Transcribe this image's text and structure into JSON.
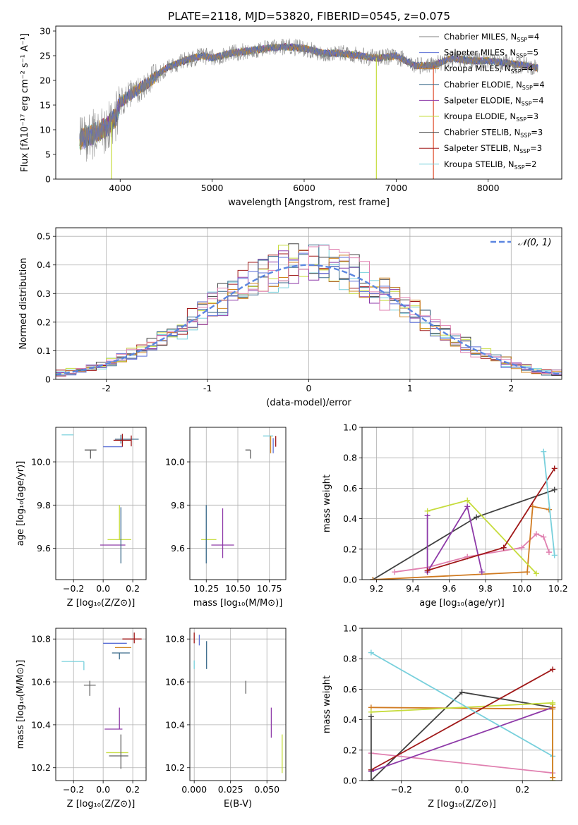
{
  "figure_title": "PLATE=2118, MJD=53820, FIBERID=0545, z=0.075",
  "series_colors": [
    "#808080",
    "#5b6fd6",
    "#d08420",
    "#3a6a8a",
    "#8e3aa8",
    "#c6dc3c",
    "#404040",
    "#a01818",
    "#78d0dc"
  ],
  "sfh_colors": [
    "#404040",
    "#e080b0",
    "#c0c0c0",
    "#d07a20",
    "#8e3aa8",
    "#c6dc3c",
    "#50a0b0",
    "#a01818",
    "#78d0dc"
  ],
  "chart_data": [
    {
      "id": "spectrum",
      "type": "line",
      "xlabel": "wavelength [Angstrom, rest frame]",
      "ylabel": "Flux [fλ10⁻¹⁷ erg cm⁻² s⁻¹ A⁻¹]",
      "xlim": [
        3300,
        8800
      ],
      "ylim": [
        0,
        31
      ],
      "xticks": [
        4000,
        5000,
        6000,
        7000,
        8000
      ],
      "yticks": [
        0,
        5,
        10,
        15,
        20,
        25,
        30
      ],
      "grid": false,
      "legend_position": "top-right",
      "spectrum_x": [
        3560,
        3700,
        3850,
        3950,
        4000,
        4100,
        4300,
        4500,
        4700,
        4900,
        5000,
        5200,
        5400,
        5600,
        5800,
        6000,
        6200,
        6400,
        6600,
        6800,
        7000,
        7200,
        7400,
        7600,
        7800,
        8000,
        8200,
        8400,
        8540
      ],
      "spectrum_y": [
        8,
        9,
        10.5,
        12.5,
        15.5,
        17,
        19.5,
        22.5,
        24,
        25,
        24.5,
        25.5,
        26,
        26.5,
        26.8,
        26.5,
        25.5,
        25.5,
        25,
        24.5,
        25,
        23,
        23,
        24.5,
        24,
        24,
        23.5,
        23,
        22.5
      ],
      "series": [
        {
          "name": "Chabrier MILES, N",
          "sub": "SSP",
          "suffix": "=4"
        },
        {
          "name": "Salpeter MILES, N",
          "sub": "SSP",
          "suffix": "=5"
        },
        {
          "name": "Kroupa MILES, N",
          "sub": "SSP",
          "suffix": "=4"
        },
        {
          "name": "Chabrier ELODIE, N",
          "sub": "SSP",
          "suffix": "=4"
        },
        {
          "name": "Salpeter ELODIE, N",
          "sub": "SSP",
          "suffix": "=4"
        },
        {
          "name": "Kroupa ELODIE, N",
          "sub": "SSP",
          "suffix": "=3"
        },
        {
          "name": "Chabrier STELIB, N",
          "sub": "SSP",
          "suffix": "=3"
        },
        {
          "name": "Salpeter STELIB, N",
          "sub": "SSP",
          "suffix": "=3"
        },
        {
          "name": "Kroupa STELIB, N",
          "sub": "SSP",
          "suffix": "=2"
        }
      ]
    },
    {
      "id": "residuals",
      "type": "histogram",
      "xlabel": "(data-model)/error",
      "ylabel": "Normed distribution",
      "xlim": [
        -2.5,
        2.5
      ],
      "ylim": [
        0,
        0.53
      ],
      "xticks": [
        -2,
        -1,
        0,
        1,
        2
      ],
      "yticks": [
        0.0,
        0.1,
        0.2,
        0.3,
        0.4,
        0.5
      ],
      "grid": true,
      "legend_position": "top-right",
      "reference_curve": {
        "label": "𝒩(0, 1)",
        "mean": 0,
        "sigma": 1,
        "amplitude": 0.4
      }
    },
    {
      "id": "age_vs_Z",
      "type": "errorbar",
      "xlabel": "Z [log₁₀(Z/Z⊙)]",
      "ylabel": "age  [log₁₀(age/yr)]",
      "xlim": [
        -0.32,
        0.29
      ],
      "ylim": [
        9.455,
        10.16
      ],
      "xticks": [
        -0.2,
        0.0,
        0.2
      ],
      "xticklabels": [
        "−0.2",
        "0.0",
        "0.2"
      ],
      "yticks": [
        9.6,
        9.8,
        10.0
      ],
      "yticklabels": [
        "9.6",
        "9.8",
        "10.0"
      ],
      "grid": true,
      "points": [
        {
          "x": -0.2,
          "y": 10.125,
          "xl": 0.08,
          "xh": 0.0,
          "yl": 0.0,
          "yh": 0.0,
          "c": 8
        },
        {
          "x": -0.085,
          "y": 10.055,
          "xl": 0.04,
          "xh": 0.04,
          "yl": 0.04,
          "yh": 0.0,
          "c": 6
        },
        {
          "x": 0.08,
          "y": 10.07,
          "xl": 0.08,
          "xh": 0.05,
          "yl": 0.0,
          "yh": 0.0,
          "c": 1
        },
        {
          "x": 0.12,
          "y": 10.105,
          "xl": 0.04,
          "xh": 0.12,
          "yl": 0.02,
          "yh": 0.02,
          "c": 3
        },
        {
          "x": 0.13,
          "y": 10.1,
          "xl": 0.06,
          "xh": 0.06,
          "yl": 0.03,
          "yh": 0.03,
          "c": 7
        },
        {
          "x": 0.19,
          "y": 10.102,
          "xl": 0.0,
          "xh": 0.0,
          "yl": 0.03,
          "yh": 0.02,
          "c": 7
        },
        {
          "x": 0.1,
          "y": 9.615,
          "xl": 0.12,
          "xh": 0.05,
          "yl": 0.0,
          "yh": 0.0,
          "c": 4
        },
        {
          "x": 0.11,
          "y": 9.64,
          "xl": 0.08,
          "xh": 0.08,
          "yl": 0.0,
          "yh": 0.16,
          "c": 5
        },
        {
          "x": 0.12,
          "y": 9.62,
          "xl": 0.0,
          "xh": 0.0,
          "yl": 0.09,
          "yh": 0.17,
          "c": 3
        }
      ]
    },
    {
      "id": "age_vs_mass",
      "type": "errorbar",
      "xlabel": "mass [log₁₀(M/M⊙)]",
      "ylabel": "",
      "xlim": [
        10.12,
        10.88
      ],
      "ylim": [
        9.455,
        10.16
      ],
      "xticks": [
        10.25,
        10.5,
        10.75
      ],
      "xticklabels": [
        "10.25",
        "10.50",
        "10.75"
      ],
      "yticks": [
        9.6,
        9.8,
        10.0
      ],
      "yticklabels": [
        "9.6",
        "9.8",
        "10.0"
      ],
      "grid": true,
      "points": [
        {
          "x": 10.6,
          "y": 10.055,
          "xl": 0.04,
          "xh": 0.0,
          "yl": 0.04,
          "yh": 0.0,
          "c": 6
        },
        {
          "x": 10.73,
          "y": 10.12,
          "xl": 0.03,
          "xh": 0.05,
          "yl": 0.0,
          "yh": 0.0,
          "c": 8
        },
        {
          "x": 10.76,
          "y": 10.09,
          "xl": 0.0,
          "xh": 0.0,
          "yl": 0.05,
          "yh": 0.03,
          "c": 2
        },
        {
          "x": 10.78,
          "y": 10.08,
          "xl": 0.0,
          "xh": 0.0,
          "yl": 0.04,
          "yh": 0.03,
          "c": 1
        },
        {
          "x": 10.8,
          "y": 10.1,
          "xl": 0.0,
          "xh": 0.0,
          "yl": 0.03,
          "yh": 0.02,
          "c": 7
        },
        {
          "x": 10.38,
          "y": 9.615,
          "xl": 0.09,
          "xh": 0.09,
          "yl": 0.06,
          "yh": 0.17,
          "c": 4
        },
        {
          "x": 10.27,
          "y": 9.64,
          "xl": 0.06,
          "xh": 0.06,
          "yl": 0.0,
          "yh": 0.0,
          "c": 5
        },
        {
          "x": 10.25,
          "y": 9.62,
          "xl": 0.0,
          "xh": 0.0,
          "yl": 0.09,
          "yh": 0.18,
          "c": 3
        }
      ]
    },
    {
      "id": "mass_weight_vs_age",
      "type": "line",
      "xlabel": "age  [log₁₀(age/yr)]",
      "ylabel": "mass weight",
      "xlim": [
        9.12,
        10.22
      ],
      "ylim": [
        0,
        1.0
      ],
      "xticks": [
        9.2,
        9.4,
        9.6,
        9.8,
        10.0,
        10.2
      ],
      "xticklabels": [
        "9.2",
        "9.4",
        "9.6",
        "9.8",
        "10.0",
        "10.2"
      ],
      "yticks": [
        0.0,
        0.2,
        0.4,
        0.6,
        0.8,
        1.0
      ],
      "yticklabels": [
        "0.0",
        "0.2",
        "0.4",
        "0.6",
        "0.8",
        "1.0"
      ],
      "grid": true,
      "series": [
        {
          "x": [
            9.18,
            9.75,
            10.18
          ],
          "y": [
            0.0,
            0.41,
            0.59
          ],
          "c": 0
        },
        {
          "x": [
            9.3,
            9.48,
            9.7,
            10.0,
            10.08,
            10.12,
            10.15
          ],
          "y": [
            0.05,
            0.08,
            0.15,
            0.21,
            0.3,
            0.28,
            0.18
          ],
          "c": 1
        },
        {
          "x": [
            9.18,
            10.03,
            10.06,
            10.15
          ],
          "y": [
            0.0,
            0.05,
            0.48,
            0.46
          ],
          "c": 3
        },
        {
          "x": [
            9.48,
            9.48,
            9.7,
            9.78
          ],
          "y": [
            0.42,
            0.05,
            0.48,
            0.05
          ],
          "c": 4
        },
        {
          "x": [
            9.48,
            9.7,
            10.08
          ],
          "y": [
            0.45,
            0.52,
            0.04
          ],
          "c": 5
        },
        {
          "x": [
            9.48,
            9.9,
            10.18
          ],
          "y": [
            0.06,
            0.21,
            0.73
          ],
          "c": 7
        },
        {
          "x": [
            10.12,
            10.18
          ],
          "y": [
            0.84,
            0.16
          ],
          "c": 8
        }
      ]
    },
    {
      "id": "mass_vs_Z",
      "type": "errorbar",
      "xlabel": "Z [log₁₀(Z/Z⊙)]",
      "ylabel": "mass [log₁₀(M/M⊙)]",
      "xlim": [
        -0.32,
        0.29
      ],
      "ylim": [
        10.14,
        10.85
      ],
      "xticks": [
        -0.2,
        0.0,
        0.2
      ],
      "xticklabels": [
        "−0.2",
        "0.0",
        "0.2"
      ],
      "yticks": [
        10.2,
        10.4,
        10.6,
        10.8
      ],
      "yticklabels": [
        "10.2",
        "10.4",
        "10.6",
        "10.8"
      ],
      "grid": true,
      "points": [
        {
          "x": -0.2,
          "y": 10.695,
          "xl": 0.08,
          "xh": 0.07,
          "yl": 0.0,
          "yh": 0.0,
          "c": 8
        },
        {
          "x": -0.13,
          "y": 10.695,
          "xl": 0.0,
          "xh": 0.0,
          "yl": 0.04,
          "yh": 0.0,
          "c": 8
        },
        {
          "x": -0.09,
          "y": 10.585,
          "xl": 0.04,
          "xh": 0.04,
          "yl": 0.05,
          "yh": 0.02,
          "c": 6
        },
        {
          "x": 0.08,
          "y": 10.78,
          "xl": 0.08,
          "xh": 0.08,
          "yl": 0.0,
          "yh": 0.0,
          "c": 1
        },
        {
          "x": 0.11,
          "y": 10.76,
          "xl": 0.03,
          "xh": 0.08,
          "yl": 0.0,
          "yh": 0.0,
          "c": 2
        },
        {
          "x": 0.11,
          "y": 10.735,
          "xl": 0.05,
          "xh": 0.07,
          "yl": 0.03,
          "yh": 0.0,
          "c": 3
        },
        {
          "x": 0.21,
          "y": 10.8,
          "xl": 0.08,
          "xh": 0.05,
          "yl": 0.02,
          "yh": 0.03,
          "c": 7
        },
        {
          "x": 0.11,
          "y": 10.38,
          "xl": 0.1,
          "xh": 0.02,
          "yl": 0.0,
          "yh": 0.1,
          "c": 4
        },
        {
          "x": 0.12,
          "y": 10.27,
          "xl": 0.1,
          "xh": 0.05,
          "yl": 0.0,
          "yh": 0.0,
          "c": 5
        },
        {
          "x": 0.12,
          "y": 10.255,
          "xl": 0.08,
          "xh": 0.05,
          "yl": 0.06,
          "yh": 0.1,
          "c": 6
        }
      ]
    },
    {
      "id": "mass_vs_EBV",
      "type": "errorbar",
      "xlabel": "E(B-V)",
      "ylabel": "",
      "xlim": [
        -0.003,
        0.063
      ],
      "ylim": [
        10.14,
        10.85
      ],
      "xticks": [
        0.0,
        0.025,
        0.05
      ],
      "xticklabels": [
        "0.000",
        "0.025",
        "0.050"
      ],
      "yticks": [
        10.2,
        10.4,
        10.6,
        10.8
      ],
      "yticklabels": [
        "10.2",
        "10.4",
        "10.6",
        "10.8"
      ],
      "grid": true,
      "points": [
        {
          "x": 0.0,
          "y": 10.8,
          "xl": 0.0,
          "xh": 0.0,
          "yl": 0.02,
          "yh": 0.03,
          "c": 7
        },
        {
          "x": 0.0,
          "y": 10.68,
          "xl": 0.0,
          "xh": 0.0,
          "yl": 0.02,
          "yh": 0.02,
          "c": 8
        },
        {
          "x": 0.0035,
          "y": 10.78,
          "xl": 0.0,
          "xh": 0.0,
          "yl": 0.01,
          "yh": 0.04,
          "c": 1
        },
        {
          "x": 0.0085,
          "y": 10.74,
          "xl": 0.0,
          "xh": 0.0,
          "yl": 0.08,
          "yh": 0.05,
          "c": 3
        },
        {
          "x": 0.0355,
          "y": 10.585,
          "xl": 0.0,
          "xh": 0.0,
          "yl": 0.04,
          "yh": 0.02,
          "c": 6
        },
        {
          "x": 0.053,
          "y": 10.41,
          "xl": 0.0,
          "xh": 0.0,
          "yl": 0.07,
          "yh": 0.07,
          "c": 4
        },
        {
          "x": 0.0605,
          "y": 10.265,
          "xl": 0.0,
          "xh": 0.0,
          "yl": 0.09,
          "yh": 0.09,
          "c": 5
        }
      ]
    },
    {
      "id": "mass_weight_vs_Z",
      "type": "line",
      "xlabel": "Z [log₁₀(Z/Z⊙)]",
      "ylabel": "mass weight",
      "xlim": [
        -0.33,
        0.33
      ],
      "ylim": [
        0,
        1.0
      ],
      "xticks": [
        -0.2,
        0.0,
        0.2
      ],
      "xticklabels": [
        "−0.2",
        "0.0",
        "0.2"
      ],
      "yticks": [
        0.0,
        0.2,
        0.4,
        0.6,
        0.8,
        1.0
      ],
      "yticklabels": [
        "0.0",
        "0.2",
        "0.4",
        "0.6",
        "0.8",
        "1.0"
      ],
      "grid": true,
      "series": [
        {
          "x": [
            -0.3,
            0.0,
            0.3
          ],
          "y": [
            0.0,
            0.58,
            0.48
          ],
          "c": 0
        },
        {
          "x": [
            -0.3,
            0.3
          ],
          "y": [
            0.18,
            0.05
          ],
          "c": 1
        },
        {
          "x": [
            -0.3,
            0.3
          ],
          "y": [
            0.48,
            0.47
          ],
          "c": 3
        },
        {
          "x": [
            -0.3,
            0.3
          ],
          "y": [
            0.06,
            0.48
          ],
          "c": 4
        },
        {
          "x": [
            -0.3,
            0.3
          ],
          "y": [
            0.45,
            0.51
          ],
          "c": 5
        },
        {
          "x": [
            -0.3,
            0.3
          ],
          "y": [
            0.07,
            0.73
          ],
          "c": 7
        },
        {
          "x": [
            -0.3,
            0.3
          ],
          "y": [
            0.84,
            0.16
          ],
          "c": 8
        },
        {
          "x": [
            -0.3,
            -0.3
          ],
          "y": [
            0.0,
            0.42
          ],
          "c": 0
        },
        {
          "x": [
            0.3,
            0.3
          ],
          "y": [
            0.0,
            0.5
          ],
          "c": 5
        },
        {
          "x": [
            0.3,
            0.3
          ],
          "y": [
            0.02,
            0.48
          ],
          "c": 3
        }
      ]
    }
  ]
}
